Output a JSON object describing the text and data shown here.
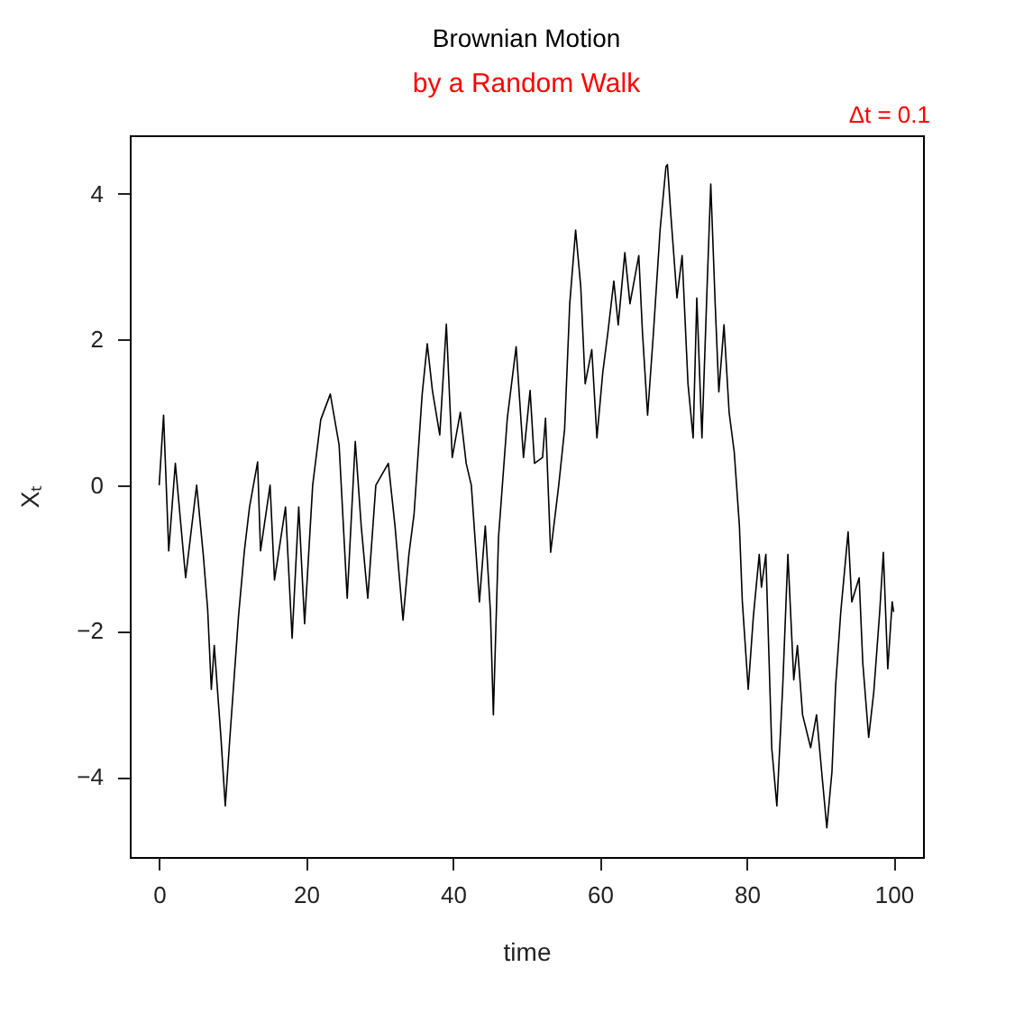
{
  "chart_data": {
    "type": "line",
    "title": "Brownian Motion",
    "subtitle": "by a Random Walk",
    "xlabel": "time",
    "ylabel": "Xₜ",
    "annotations": [
      "Δt = 0.1"
    ],
    "xlim": [
      -4,
      104
    ],
    "ylim": [
      -5.1,
      4.8
    ],
    "xticks": [
      0,
      20,
      40,
      60,
      80,
      100
    ],
    "yticks": [
      -4,
      -2,
      0,
      2,
      4
    ],
    "grid": false,
    "marker": "none",
    "line_style": "solid",
    "series": [
      {
        "color": "#000000",
        "x": [
          0,
          0.6,
          1.3,
          2.2,
          3.6,
          5.1,
          6.0,
          6.6,
          7.1,
          7.5,
          8.4,
          9.0,
          9.6,
          10.8,
          11.6,
          12.3,
          13.4,
          13.8,
          15.1,
          15.7,
          17.2,
          18.1,
          19.0,
          19.8,
          20.9,
          22.0,
          23.3,
          24.5,
          25.6,
          26.7,
          27.5,
          28.4,
          29.5,
          31.2,
          32.1,
          33.2,
          34.0,
          34.7,
          35.8,
          36.5,
          37.2,
          38.2,
          39.1,
          39.9,
          41.0,
          41.8,
          42.5,
          43.6,
          44.4,
          45.1,
          45.5,
          46.2,
          47.4,
          48.6,
          49.6,
          50.5,
          51.1,
          52.2,
          52.6,
          53.3,
          54.4,
          55.2,
          55.9,
          56.7,
          57.4,
          58.0,
          58.9,
          59.6,
          60.4,
          61.1,
          61.9,
          62.5,
          63.4,
          64.1,
          65.3,
          65.8,
          66.5,
          67.3,
          68.2,
          69.0,
          69.2,
          69.7,
          70.5,
          71.2,
          72.0,
          72.7,
          73.2,
          73.9,
          74.6,
          75.1,
          75.7,
          76.2,
          76.9,
          77.6,
          78.3,
          79.0,
          79.4,
          80.2,
          80.9,
          81.7,
          82.0,
          82.6,
          83.4,
          84.1,
          84.9,
          85.6,
          86.4,
          86.9,
          87.6,
          88.7,
          89.5,
          90.2,
          90.9,
          91.6,
          92.1,
          92.8,
          93.8,
          94.3,
          95.3,
          95.8,
          96.6,
          97.3,
          98.1,
          98.6,
          99.2,
          99.8,
          100
        ],
        "values": [
          0,
          0.96,
          -0.9,
          0.3,
          -1.27,
          0,
          -0.95,
          -1.7,
          -2.8,
          -2.2,
          -3.45,
          -4.4,
          -3.5,
          -1.8,
          -0.9,
          -0.3,
          0.32,
          -0.9,
          0,
          -1.3,
          -0.3,
          -2.1,
          -0.3,
          -1.9,
          0,
          0.9,
          1.25,
          0.55,
          -1.55,
          0.6,
          -0.55,
          -1.55,
          0,
          0.3,
          -0.55,
          -1.85,
          -0.95,
          -0.4,
          1.24,
          1.94,
          1.3,
          0.69,
          2.21,
          0.38,
          1.0,
          0.3,
          0,
          -1.6,
          -0.56,
          -1.74,
          -3.15,
          -0.72,
          0.92,
          1.9,
          0.38,
          1.3,
          0.3,
          0.38,
          0.92,
          -0.92,
          0,
          0.77,
          2.49,
          3.5,
          2.72,
          1.39,
          1.86,
          0.65,
          1.55,
          2.1,
          2.8,
          2.2,
          3.19,
          2.49,
          3.15,
          2.1,
          0.96,
          2.1,
          3.5,
          4.37,
          4.4,
          3.66,
          2.57,
          3.15,
          1.39,
          0.65,
          2.57,
          0.65,
          2.72,
          4.13,
          2.49,
          1.28,
          2.2,
          1.0,
          0.45,
          -0.56,
          -1.6,
          -2.8,
          -1.8,
          -0.95,
          -1.4,
          -0.95,
          -3.6,
          -4.4,
          -2.75,
          -0.95,
          -2.67,
          -2.2,
          -3.15,
          -3.6,
          -3.15,
          -3.93,
          -4.7,
          -3.93,
          -2.75,
          -1.74,
          -0.64,
          -1.6,
          -1.27,
          -2.44,
          -3.46,
          -2.83,
          -1.74,
          -0.92,
          -2.52,
          -1.6,
          -1.74
        ]
      }
    ]
  }
}
